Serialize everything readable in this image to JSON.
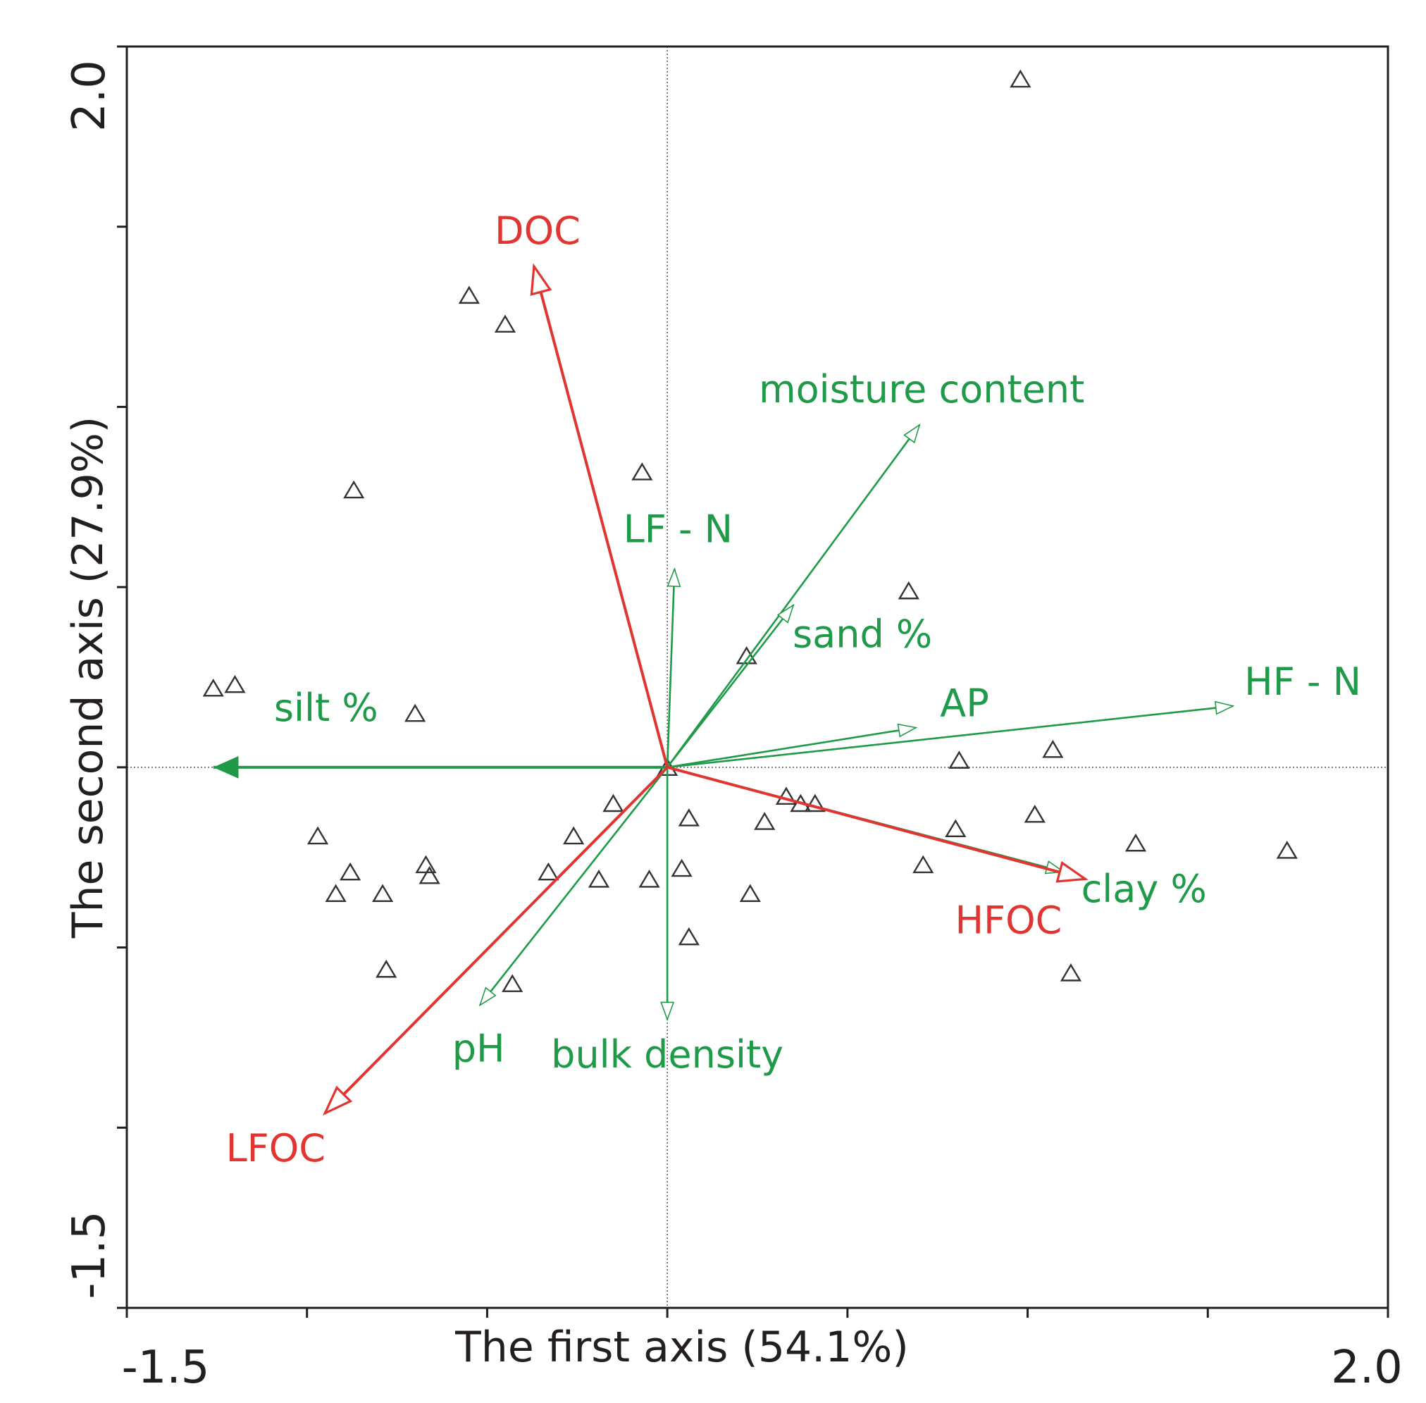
{
  "chart_data": {
    "type": "scatter",
    "subtype": "ordination-biplot",
    "xlabel": "The first axis (54.1%)",
    "ylabel": "The second axis (27.9%)",
    "xlim": [
      -1.5,
      2.0
    ],
    "ylim": [
      -1.5,
      2.0
    ],
    "x_tick_labels": [
      {
        "value": -1.5,
        "label": "-1.5"
      },
      {
        "value": 2.0,
        "label": "2.0"
      }
    ],
    "y_tick_labels": [
      {
        "value": 2.0,
        "label": "2.0"
      },
      {
        "value": -1.5,
        "label": "-1.5"
      }
    ],
    "minor_tick_step": 0.5,
    "zero_lines": "dotted",
    "colors": {
      "response": "#e03530",
      "environment": "#1f9a48",
      "samples": "#333333",
      "frame": "#231f20"
    },
    "response_vectors": [
      {
        "name": "DOC",
        "x": -0.37,
        "y": 1.39
      },
      {
        "name": "LFOC",
        "x": -0.95,
        "y": -0.96
      },
      {
        "name": "HFOC",
        "x": 1.16,
        "y": -0.31
      }
    ],
    "environment_vectors": [
      {
        "name": "moisture content",
        "x": 0.7,
        "y": 0.95
      },
      {
        "name": "LF - N",
        "x": 0.02,
        "y": 0.55
      },
      {
        "name": "sand %",
        "x": 0.35,
        "y": 0.45
      },
      {
        "name": "AP",
        "x": 0.69,
        "y": 0.11
      },
      {
        "name": "HF - N",
        "x": 1.57,
        "y": 0.17
      },
      {
        "name": "silt %",
        "x": -1.26,
        "y": 0.0
      },
      {
        "name": "clay %",
        "x": 1.1,
        "y": -0.29
      },
      {
        "name": "pH",
        "x": -0.52,
        "y": -0.66
      },
      {
        "name": "bulk density",
        "x": 0.0,
        "y": -0.7
      }
    ],
    "samples": [
      [
        0.98,
        1.91
      ],
      [
        -0.55,
        1.31
      ],
      [
        -0.45,
        1.23
      ],
      [
        -0.07,
        0.82
      ],
      [
        -0.87,
        0.77
      ],
      [
        0.67,
        0.49
      ],
      [
        0.22,
        0.31
      ],
      [
        -1.26,
        0.22
      ],
      [
        -1.2,
        0.23
      ],
      [
        -0.7,
        0.15
      ],
      [
        0.81,
        0.02
      ],
      [
        1.07,
        0.05
      ],
      [
        0.0,
        0.0
      ],
      [
        -0.15,
        -0.1
      ],
      [
        0.06,
        -0.14
      ],
      [
        0.27,
        -0.15
      ],
      [
        0.33,
        -0.08
      ],
      [
        0.37,
        -0.1
      ],
      [
        0.41,
        -0.1
      ],
      [
        1.02,
        -0.13
      ],
      [
        0.8,
        -0.17
      ],
      [
        1.3,
        -0.21
      ],
      [
        1.72,
        -0.23
      ],
      [
        -0.97,
        -0.19
      ],
      [
        -0.26,
        -0.19
      ],
      [
        -0.88,
        -0.29
      ],
      [
        -0.67,
        -0.27
      ],
      [
        -0.66,
        -0.3
      ],
      [
        -0.33,
        -0.29
      ],
      [
        -0.19,
        -0.31
      ],
      [
        -0.05,
        -0.31
      ],
      [
        0.04,
        -0.28
      ],
      [
        0.71,
        -0.27
      ],
      [
        -0.92,
        -0.35
      ],
      [
        -0.79,
        -0.35
      ],
      [
        0.23,
        -0.35
      ],
      [
        0.06,
        -0.47
      ],
      [
        -0.78,
        -0.56
      ],
      [
        1.12,
        -0.57
      ],
      [
        -0.43,
        -0.6
      ]
    ]
  }
}
